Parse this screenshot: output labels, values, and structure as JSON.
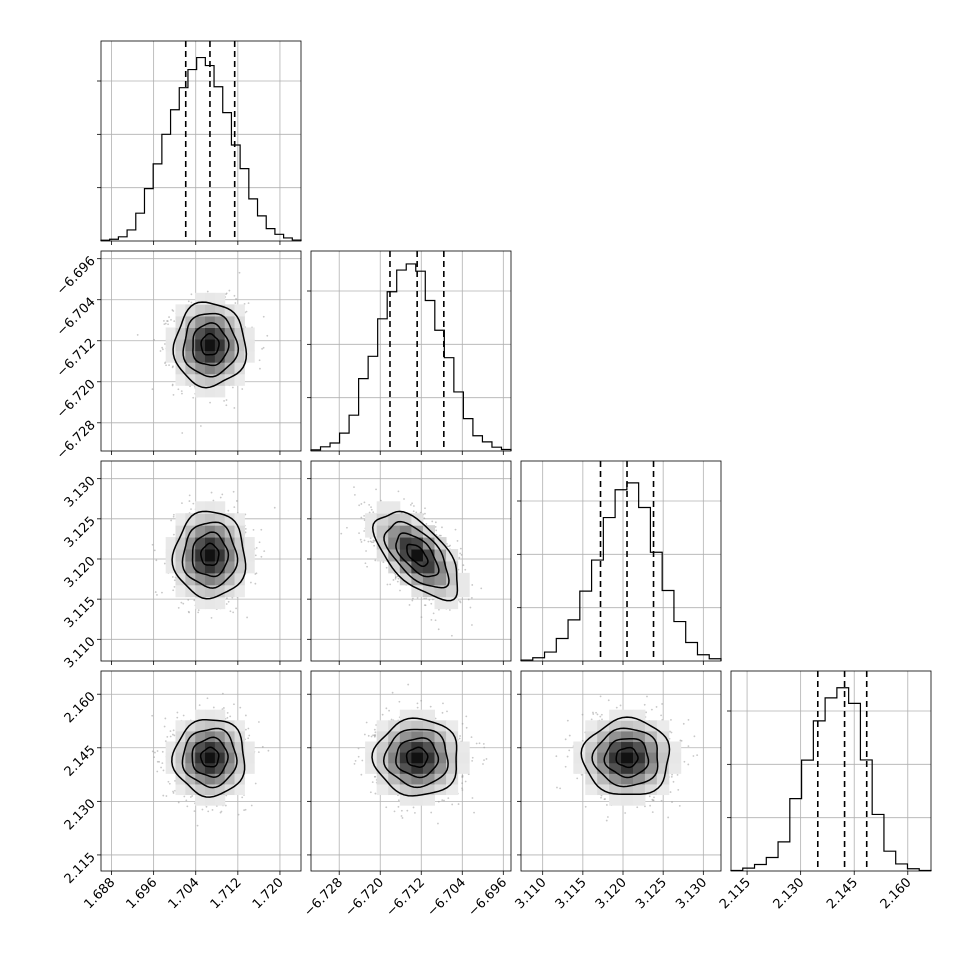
{
  "chart_data": {
    "type": "corner",
    "parameters": [
      {
        "key": "p0",
        "range": [
          1.686,
          1.724
        ],
        "ticks": [
          1.688,
          1.696,
          1.704,
          1.712,
          1.72
        ],
        "tick_labels": [
          "1.688",
          "1.696",
          "1.704",
          "1.712",
          "1.720"
        ],
        "median": 1.7067,
        "quantiles": [
          1.7021,
          1.7067,
          1.7114
        ],
        "sigma": 0.0034
      },
      {
        "key": "p1",
        "range": [
          -6.7335,
          -6.6945
        ],
        "ticks": [
          -6.728,
          -6.72,
          -6.712,
          -6.704,
          -6.696
        ],
        "tick_labels": [
          "−6.728",
          "−6.720",
          "−6.712",
          "−6.704",
          "−6.696"
        ],
        "median": -6.7128,
        "quantiles": [
          -6.7181,
          -6.7128,
          -6.7076
        ],
        "sigma": 0.0041
      },
      {
        "key": "p2",
        "range": [
          3.1073,
          3.1322
        ],
        "ticks": [
          3.11,
          3.115,
          3.12,
          3.125,
          3.13
        ],
        "tick_labels": [
          "3.110",
          "3.115",
          "3.120",
          "3.125",
          "3.130"
        ],
        "median": 3.1205,
        "quantiles": [
          3.1172,
          3.1205,
          3.1238
        ],
        "sigma": 0.0027
      },
      {
        "key": "p3",
        "range": [
          2.1105,
          2.1665
        ],
        "ticks": [
          2.115,
          2.13,
          2.145,
          2.16
        ],
        "tick_labels": [
          "2.115",
          "2.130",
          "2.145",
          "2.160"
        ],
        "median": 2.1423,
        "quantiles": [
          2.1348,
          2.1423,
          2.1485
        ],
        "sigma": 0.0054
      }
    ],
    "histograms": [
      {
        "param": "p0",
        "bin_edges_range": [
          1.686,
          1.724
        ],
        "counts": [
          0.004,
          0.009,
          0.022,
          0.058,
          0.146,
          0.275,
          0.405,
          0.56,
          0.689,
          0.805,
          0.9,
          0.963,
          0.921,
          0.81,
          0.674,
          0.504,
          0.38,
          0.221,
          0.132,
          0.065,
          0.035,
          0.016,
          0.005
        ]
      },
      {
        "param": "p1",
        "bin_edges_range": [
          -6.7335,
          -6.6945
        ],
        "counts": [
          0.006,
          0.022,
          0.042,
          0.094,
          0.188,
          0.38,
          0.497,
          0.694,
          0.836,
          0.95,
          0.982,
          0.944,
          0.79,
          0.634,
          0.49,
          0.31,
          0.17,
          0.08,
          0.048,
          0.02,
          0.008
        ]
      },
      {
        "param": "p2",
        "bin_edges_range": [
          3.1073,
          3.1322
        ],
        "counts": [
          0.005,
          0.017,
          0.047,
          0.118,
          0.216,
          0.367,
          0.53,
          0.753,
          0.899,
          0.935,
          0.806,
          0.571,
          0.37,
          0.207,
          0.097,
          0.033,
          0.012
        ]
      },
      {
        "param": "p3",
        "bin_edges_range": [
          2.1105,
          2.1665
        ],
        "counts": [
          0.003,
          0.015,
          0.034,
          0.071,
          0.153,
          0.38,
          0.582,
          0.788,
          0.909,
          0.962,
          0.88,
          0.583,
          0.297,
          0.104,
          0.037,
          0.012,
          0.003
        ]
      }
    ],
    "pairs": [
      {
        "x": "p0",
        "y": "p1",
        "correlation": 0.0
      },
      {
        "x": "p0",
        "y": "p2",
        "correlation": 0.0
      },
      {
        "x": "p1",
        "y": "p2",
        "correlation": -0.6
      },
      {
        "x": "p0",
        "y": "p3",
        "correlation": 0.0
      },
      {
        "x": "p1",
        "y": "p3",
        "correlation": 0.0
      },
      {
        "x": "p2",
        "y": "p3",
        "correlation": 0.0
      }
    ],
    "contour_levels_sigma": [
      0.5,
      1.0,
      1.5,
      2.0
    ],
    "grid": true,
    "title": "",
    "xlabel": "",
    "ylabel": ""
  },
  "colors": {
    "line": "#000000",
    "grid": "#b0b0b0",
    "scatter": "#9a9a9a",
    "fill_light": "#f7f7f7",
    "fill_dark": "#111111"
  }
}
